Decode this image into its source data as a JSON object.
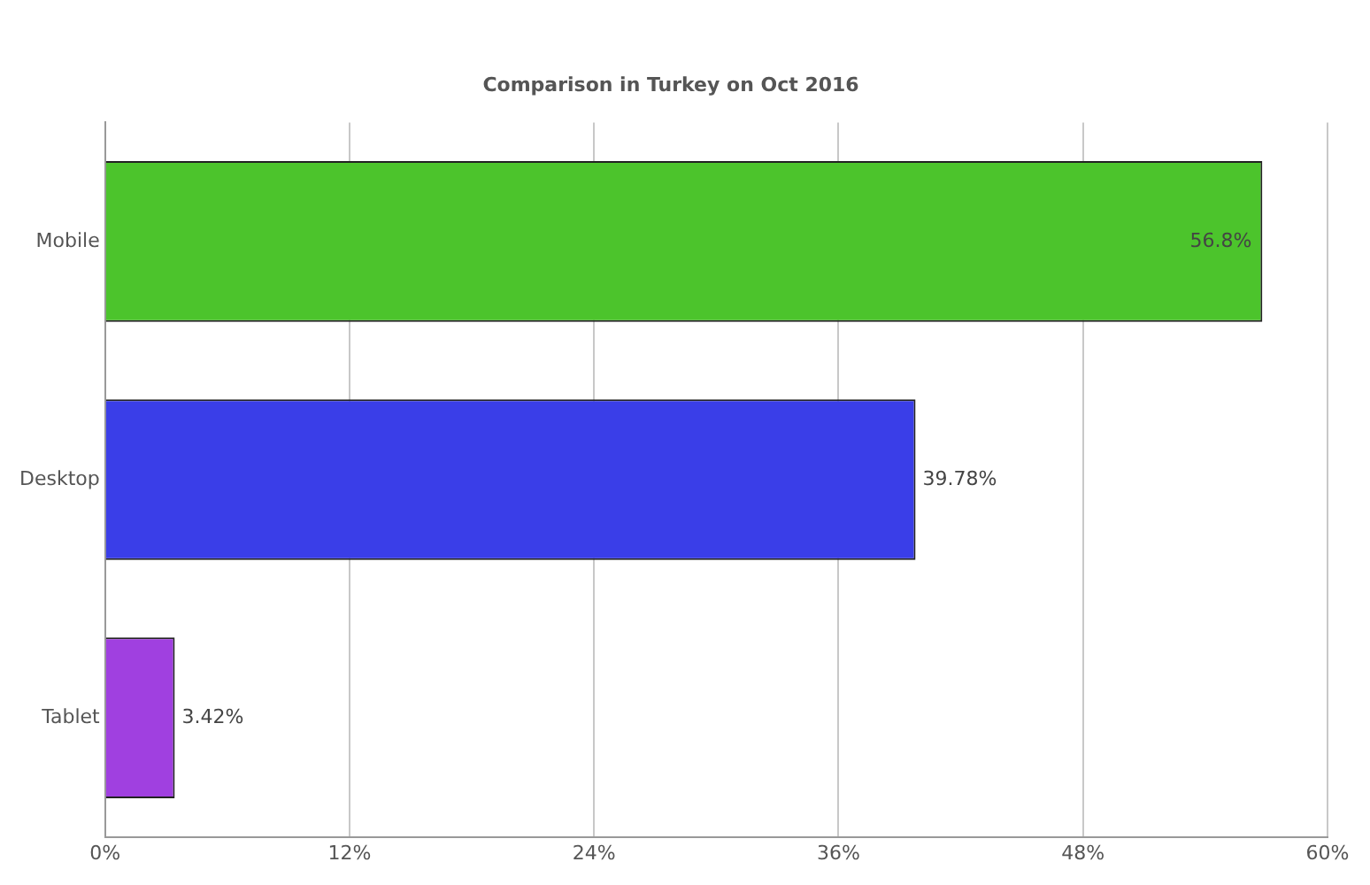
{
  "chart_data": {
    "type": "bar",
    "orientation": "horizontal",
    "subtitle": "Comparison in Turkey on Oct 2016",
    "categories": [
      "Mobile",
      "Desktop",
      "Tablet"
    ],
    "values": [
      56.8,
      39.78,
      3.42
    ],
    "colors": [
      "#4cc42c",
      "#3a3ee8",
      "#a040e0"
    ],
    "value_labels": [
      "56.8%",
      "39.78%",
      "3.42%"
    ],
    "xlim": [
      0,
      60
    ],
    "xticks": [
      {
        "value": 0,
        "label": "0%"
      },
      {
        "value": 12,
        "label": "12%"
      },
      {
        "value": 24,
        "label": "24%"
      },
      {
        "value": 36,
        "label": "36%"
      },
      {
        "value": 48,
        "label": "48%"
      },
      {
        "value": 60,
        "label": "60%"
      }
    ],
    "grid": "x",
    "legend": false
  }
}
